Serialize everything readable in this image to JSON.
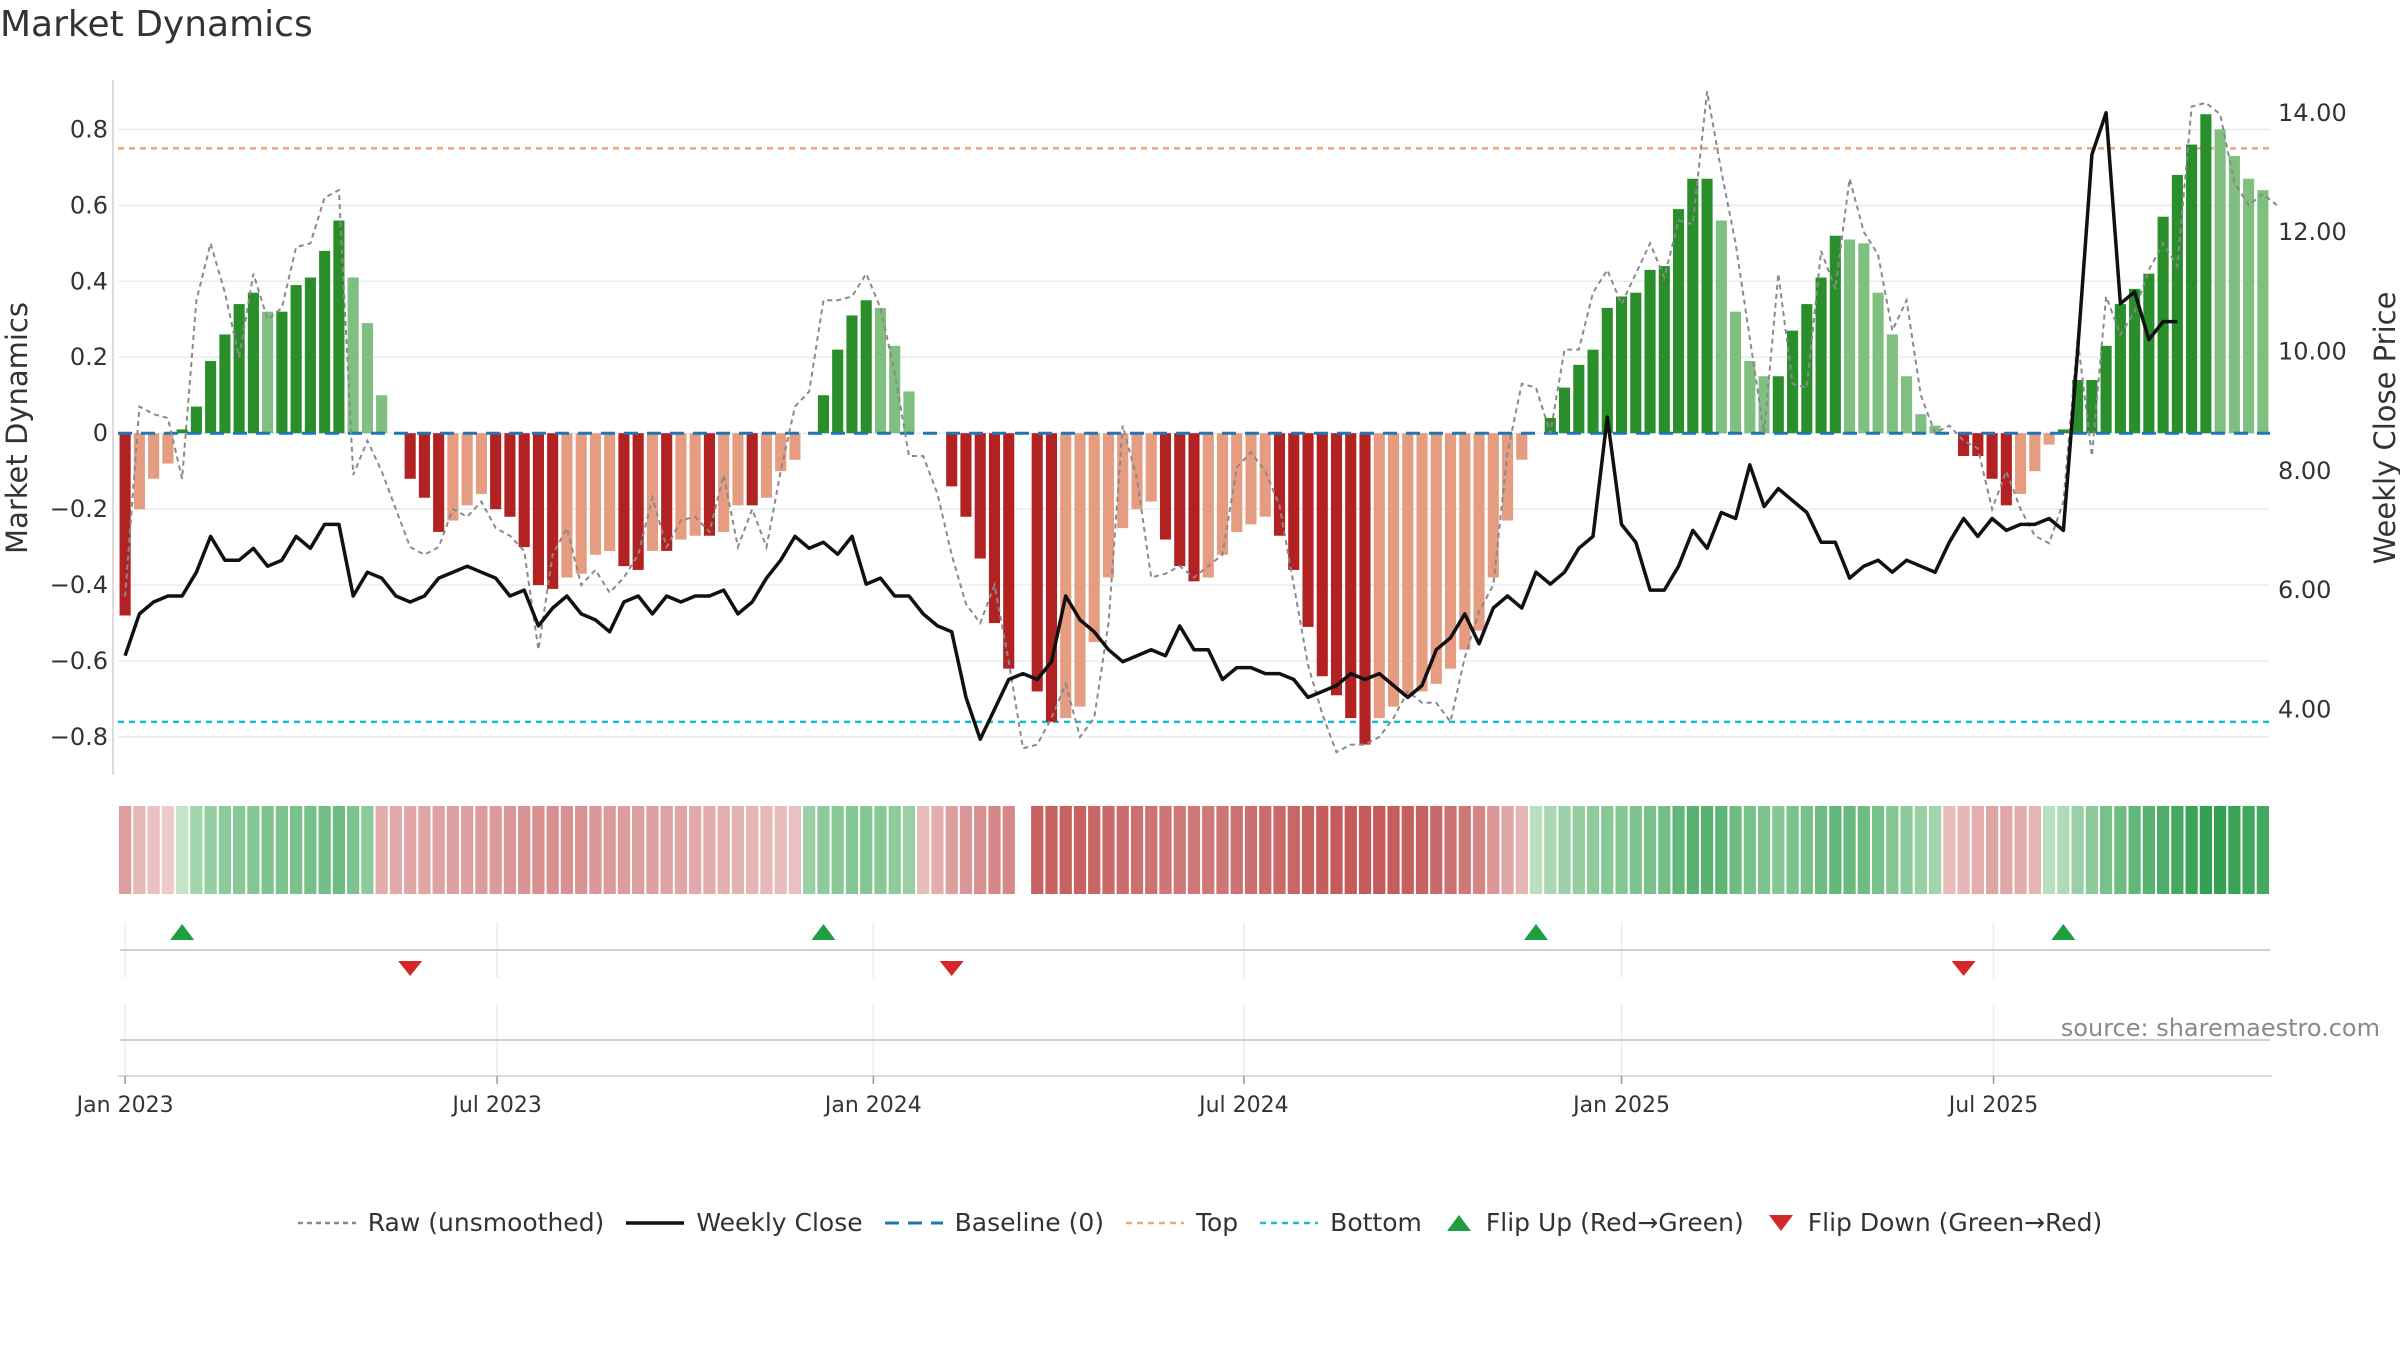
{
  "title": "Market Dynamics",
  "source": "source: sharemaestro.com",
  "colors": {
    "strong_green": "#2a8f2a",
    "light_green": "#7fbf7f",
    "strong_red": "#b22222",
    "light_red": "#e59c80",
    "close_line": "#111111",
    "raw_line": "#8a8a8a",
    "baseline": "#1f77b4",
    "top_line": "#e8a87c",
    "bottom_line": "#17becf",
    "flip_up": "#1e9e3e",
    "flip_down": "#d62728"
  },
  "legend": [
    {
      "key": "raw",
      "label": "Raw (unsmoothed)"
    },
    {
      "key": "close",
      "label": "Weekly Close"
    },
    {
      "key": "baseline",
      "label": "Baseline (0)"
    },
    {
      "key": "top",
      "label": "Top"
    },
    {
      "key": "bottom",
      "label": "Bottom"
    },
    {
      "key": "flipup",
      "label": "Flip Up (Red→Green)"
    },
    {
      "key": "flipdown",
      "label": "Flip Down (Green→Red)"
    }
  ],
  "chart_data": {
    "type": "bar",
    "title": "Market Dynamics",
    "ylabel": "Market Dynamics",
    "y2label": "Weekly Close Price",
    "ylim": [
      -0.9,
      0.93
    ],
    "y2lim": [
      2.9,
      14.55
    ],
    "yticks": [
      -0.8,
      -0.6,
      -0.4,
      -0.2,
      0,
      0.2,
      0.4,
      0.6,
      0.8
    ],
    "ytick_labels": [
      "−0.8",
      "−0.6",
      "−0.4",
      "−0.2",
      "0",
      "0.2",
      "0.4",
      "0.6",
      "0.8"
    ],
    "y2ticks": [
      4,
      6,
      8,
      10,
      12,
      14
    ],
    "y2tick_labels": [
      "4.00",
      "6.00",
      "8.00",
      "10.00",
      "12.00",
      "14.00"
    ],
    "xticks": [
      "Jan 2023",
      "Jul 2023",
      "Jan 2024",
      "Jul 2024",
      "Jan 2025",
      "Jul 2025"
    ],
    "top_level": 0.75,
    "bottom_level": -0.76,
    "baseline": 0,
    "series": [
      {
        "name": "Market Dynamics",
        "values": [
          -0.48,
          -0.2,
          -0.12,
          -0.08,
          0.01,
          0.07,
          0.19,
          0.26,
          0.34,
          0.37,
          0.32,
          0.32,
          0.39,
          0.41,
          0.48,
          0.56,
          0.41,
          0.29,
          0.1,
          0.0,
          -0.12,
          -0.17,
          -0.26,
          -0.23,
          -0.19,
          -0.16,
          -0.2,
          -0.22,
          -0.3,
          -0.4,
          -0.41,
          -0.38,
          -0.37,
          -0.32,
          -0.31,
          -0.35,
          -0.36,
          -0.31,
          -0.31,
          -0.28,
          -0.27,
          -0.27,
          -0.26,
          -0.19,
          -0.19,
          -0.17,
          -0.1,
          -0.07,
          0.0,
          0.1,
          0.22,
          0.31,
          0.35,
          0.33,
          0.23,
          0.11,
          0.0,
          0.0,
          -0.14,
          -0.22,
          -0.33,
          -0.5,
          -0.62,
          0.0,
          -0.68,
          -0.76,
          -0.75,
          -0.72,
          -0.55,
          -0.38,
          -0.25,
          -0.2,
          -0.18,
          -0.28,
          -0.35,
          -0.39,
          -0.38,
          -0.32,
          -0.26,
          -0.24,
          -0.22,
          -0.27,
          -0.36,
          -0.51,
          -0.64,
          -0.69,
          -0.75,
          -0.82,
          -0.75,
          -0.72,
          -0.69,
          -0.68,
          -0.66,
          -0.62,
          -0.57,
          -0.52,
          -0.38,
          -0.23,
          -0.07,
          0.0,
          0.04,
          0.12,
          0.18,
          0.22,
          0.33,
          0.36,
          0.37,
          0.43,
          0.44,
          0.59,
          0.67,
          0.67,
          0.56,
          0.32,
          0.19,
          0.15,
          0.15,
          0.27,
          0.34,
          0.41,
          0.52,
          0.51,
          0.5,
          0.37,
          0.26,
          0.15,
          0.05,
          0.02,
          0.0,
          -0.06,
          -0.06,
          -0.12,
          -0.19,
          -0.16,
          -0.1,
          -0.03,
          0.01,
          0.14,
          0.14,
          0.23,
          0.34,
          0.38,
          0.42,
          0.57,
          0.68,
          0.76,
          0.84,
          0.8,
          0.73,
          0.67,
          0.64
        ]
      },
      {
        "name": "Raw (unsmoothed)",
        "values": [
          -0.43,
          0.07,
          0.05,
          0.04,
          -0.12,
          0.35,
          0.5,
          0.37,
          0.2,
          0.42,
          0.3,
          0.33,
          0.49,
          0.5,
          0.62,
          0.64,
          -0.11,
          -0.02,
          -0.1,
          -0.2,
          -0.3,
          -0.32,
          -0.3,
          -0.2,
          -0.22,
          -0.18,
          -0.25,
          -0.27,
          -0.31,
          -0.57,
          -0.32,
          -0.25,
          -0.4,
          -0.36,
          -0.42,
          -0.38,
          -0.32,
          -0.17,
          -0.3,
          -0.23,
          -0.22,
          -0.26,
          -0.11,
          -0.3,
          -0.2,
          -0.3,
          -0.1,
          0.07,
          0.11,
          0.35,
          0.35,
          0.36,
          0.42,
          0.33,
          0.16,
          -0.06,
          -0.06,
          -0.16,
          -0.32,
          -0.45,
          -0.5,
          -0.4,
          -0.6,
          -0.83,
          -0.82,
          -0.75,
          -0.66,
          -0.8,
          -0.75,
          -0.5,
          0.02,
          -0.12,
          -0.38,
          -0.37,
          -0.35,
          -0.38,
          -0.35,
          -0.32,
          -0.09,
          -0.05,
          -0.1,
          -0.19,
          -0.4,
          -0.61,
          -0.74,
          -0.84,
          -0.82,
          -0.82,
          -0.8,
          -0.75,
          -0.68,
          -0.71,
          -0.71,
          -0.76,
          -0.59,
          -0.47,
          -0.4,
          -0.05,
          0.13,
          0.12,
          0.0,
          0.22,
          0.22,
          0.37,
          0.43,
          0.34,
          0.42,
          0.5,
          0.41,
          0.56,
          0.55,
          0.9,
          0.69,
          0.5,
          0.25,
          0.0,
          0.42,
          0.13,
          0.12,
          0.48,
          0.38,
          0.67,
          0.53,
          0.47,
          0.27,
          0.35,
          0.1,
          0.0,
          0.02,
          -0.02,
          -0.04,
          -0.2,
          -0.1,
          -0.2,
          -0.27,
          -0.29,
          -0.18,
          0.25,
          -0.06,
          0.36,
          0.26,
          0.32,
          0.43,
          0.5,
          0.44,
          0.86,
          0.87,
          0.84,
          0.66,
          0.6,
          0.63,
          0.6
        ]
      },
      {
        "name": "Weekly Close",
        "values": [
          4.9,
          5.6,
          5.8,
          5.9,
          5.9,
          6.3,
          6.9,
          6.5,
          6.5,
          6.7,
          6.4,
          6.5,
          6.9,
          6.7,
          7.1,
          7.1,
          5.9,
          6.3,
          6.2,
          5.9,
          5.8,
          5.9,
          6.2,
          6.3,
          6.4,
          6.3,
          6.2,
          5.9,
          6.0,
          5.4,
          5.7,
          5.9,
          5.6,
          5.5,
          5.3,
          5.8,
          5.9,
          5.6,
          5.9,
          5.8,
          5.9,
          5.9,
          6.0,
          5.6,
          5.8,
          6.2,
          6.5,
          6.9,
          6.7,
          6.8,
          6.6,
          6.9,
          6.1,
          6.2,
          5.9,
          5.9,
          5.6,
          5.4,
          5.3,
          4.2,
          3.5,
          4.0,
          4.5,
          4.6,
          4.5,
          4.8,
          5.9,
          5.5,
          5.3,
          5.0,
          4.8,
          4.9,
          5.0,
          4.9,
          5.4,
          5.0,
          5.0,
          4.5,
          4.7,
          4.7,
          4.6,
          4.6,
          4.5,
          4.2,
          4.3,
          4.4,
          4.6,
          4.5,
          4.6,
          4.4,
          4.2,
          4.4,
          5.0,
          5.2,
          5.6,
          5.1,
          5.7,
          5.9,
          5.7,
          6.3,
          6.1,
          6.3,
          6.7,
          6.9,
          8.9,
          7.1,
          6.8,
          6.0,
          6.0,
          6.4,
          7.0,
          6.7,
          7.3,
          7.2,
          8.1,
          7.4,
          7.7,
          7.5,
          7.3,
          6.8,
          6.8,
          6.2,
          6.4,
          6.5,
          6.3,
          6.5,
          6.4,
          6.3,
          6.8,
          7.2,
          6.9,
          7.2,
          7.0,
          7.1,
          7.1,
          7.2,
          7.0,
          10.0,
          13.3,
          14.0,
          10.8,
          11.0,
          10.2,
          10.5,
          10.5
        ]
      },
      {
        "name": "Regime Strip",
        "values": [
          -0.35,
          -0.18,
          -0.12,
          -0.06,
          0.1,
          0.25,
          0.32,
          0.35,
          0.38,
          0.4,
          0.42,
          0.42,
          0.45,
          0.46,
          0.48,
          0.5,
          0.42,
          0.35,
          -0.25,
          -0.28,
          -0.3,
          -0.3,
          -0.32,
          -0.33,
          -0.34,
          -0.36,
          -0.38,
          -0.4,
          -0.42,
          -0.44,
          -0.45,
          -0.44,
          -0.42,
          -0.4,
          -0.38,
          -0.36,
          -0.35,
          -0.34,
          -0.32,
          -0.3,
          -0.28,
          -0.26,
          -0.24,
          -0.22,
          -0.2,
          -0.18,
          -0.15,
          -0.12,
          0.3,
          0.35,
          0.38,
          0.4,
          0.4,
          0.38,
          0.35,
          0.3,
          -0.15,
          -0.25,
          -0.35,
          -0.4,
          -0.45,
          -0.5,
          -0.5,
          0.0,
          -0.75,
          -0.75,
          -0.75,
          -0.75,
          -0.72,
          -0.7,
          -0.68,
          -0.66,
          -0.64,
          -0.62,
          -0.6,
          -0.6,
          -0.6,
          -0.62,
          -0.64,
          -0.66,
          -0.68,
          -0.7,
          -0.72,
          -0.75,
          -0.78,
          -0.8,
          -0.82,
          -0.82,
          -0.8,
          -0.78,
          -0.76,
          -0.74,
          -0.7,
          -0.65,
          -0.6,
          -0.5,
          -0.4,
          -0.3,
          -0.2,
          0.15,
          0.22,
          0.28,
          0.32,
          0.35,
          0.38,
          0.4,
          0.42,
          0.45,
          0.48,
          0.55,
          0.6,
          0.6,
          0.58,
          0.5,
          0.45,
          0.42,
          0.4,
          0.44,
          0.46,
          0.5,
          0.55,
          0.52,
          0.5,
          0.45,
          0.4,
          0.35,
          0.3,
          0.25,
          -0.15,
          -0.2,
          -0.25,
          -0.3,
          -0.3,
          -0.25,
          -0.2,
          0.15,
          0.2,
          0.3,
          0.35,
          0.45,
          0.5,
          0.55,
          0.6,
          0.65,
          0.7,
          0.75,
          0.78,
          0.78,
          0.75,
          0.72,
          0.7
        ]
      }
    ],
    "flips": [
      {
        "type": "up",
        "x": 4
      },
      {
        "type": "down",
        "x": 20
      },
      {
        "type": "up",
        "x": 49
      },
      {
        "type": "down",
        "x": 58
      },
      {
        "type": "up",
        "x": 99
      },
      {
        "type": "down",
        "x": 129
      },
      {
        "type": "up",
        "x": 136
      }
    ],
    "legend_position": "bottom-center",
    "grid": true
  }
}
